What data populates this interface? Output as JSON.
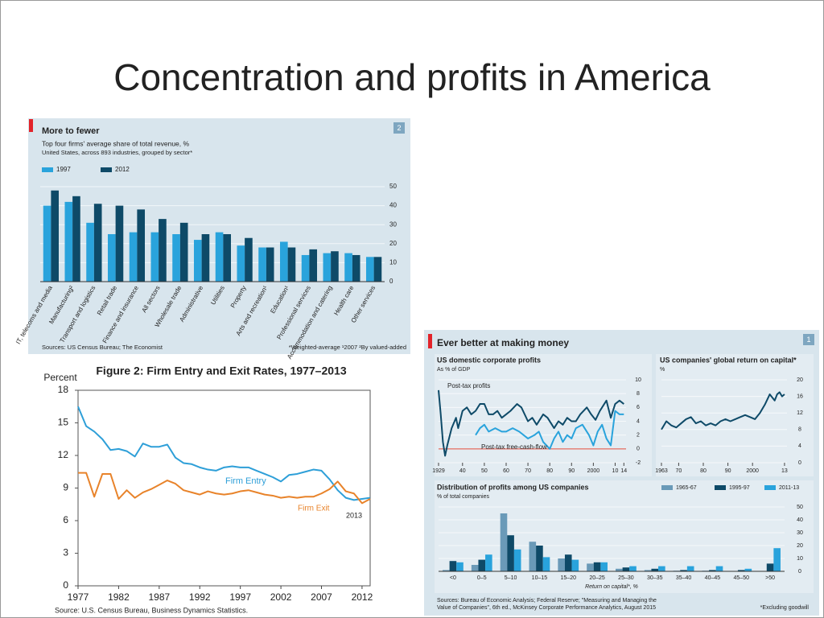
{
  "title": "Concentration and profits in America",
  "chart_data": [
    {
      "type": "bar",
      "title": "More to fewer",
      "subtitle": "Top four firms' average share of total revenue, %",
      "note": "United States, across 893 industries, grouped by sector*",
      "badge": "2",
      "source": "Sources: US Census Bureau; The Economist",
      "footnote": "*Weighted-average ¹2007 ²By valued-added",
      "categories": [
        "IT, telecoms and media",
        "Manufacturing²",
        "Transport and logistics",
        "Retail trade",
        "Finance and insurance",
        "All sectors",
        "Wholesale trade",
        "Administrative",
        "Utilities",
        "Property",
        "Arts and recreation¹",
        "Education¹",
        "Professional services",
        "Accommodation and catering",
        "Health care",
        "Other services"
      ],
      "series": [
        {
          "name": "1997",
          "color": "#29a3dc",
          "values": [
            40,
            42,
            31,
            25,
            26,
            26,
            25,
            22,
            26,
            19,
            18,
            21,
            14,
            15,
            15,
            13
          ]
        },
        {
          "name": "2012",
          "color": "#0e4a68",
          "values": [
            48,
            45,
            41,
            40,
            38,
            33,
            31,
            25,
            25,
            23,
            18,
            18,
            17,
            16,
            14,
            13
          ]
        }
      ],
      "ylim": [
        0,
        50
      ],
      "yticks": [
        0,
        10,
        20,
        30,
        40,
        50
      ],
      "grid": true
    },
    {
      "type": "line",
      "title": "Figure 2: Firm Entry and Exit Rates, 1977–2013",
      "y_label": "Percent",
      "source": "Source: U.S. Census Bureau, Business Dynamics Statistics.",
      "annotation": "2013",
      "x": [
        1977,
        1978,
        1979,
        1980,
        1981,
        1982,
        1983,
        1984,
        1985,
        1986,
        1987,
        1988,
        1989,
        1990,
        1991,
        1992,
        1993,
        1994,
        1995,
        1996,
        1997,
        1998,
        1999,
        2000,
        2001,
        2002,
        2003,
        2004,
        2005,
        2006,
        2007,
        2008,
        2009,
        2010,
        2011,
        2012,
        2013
      ],
      "series": [
        {
          "name": "Firm Entry",
          "color": "#2e9fd8",
          "values": [
            16.5,
            14.7,
            14.2,
            13.5,
            12.5,
            12.6,
            12.4,
            11.9,
            13.1,
            12.8,
            12.8,
            13.0,
            11.8,
            11.3,
            11.2,
            10.9,
            10.7,
            10.6,
            10.9,
            11.0,
            10.9,
            10.9,
            10.6,
            10.3,
            10.0,
            9.6,
            10.2,
            10.3,
            10.5,
            10.7,
            10.6,
            9.8,
            8.8,
            8.1,
            7.9,
            8.0,
            8.1
          ]
        },
        {
          "name": "Firm Exit",
          "color": "#e8832a",
          "values": [
            10.4,
            10.4,
            8.2,
            10.3,
            10.3,
            8.0,
            8.8,
            8.1,
            8.6,
            8.9,
            9.3,
            9.7,
            9.4,
            8.8,
            8.6,
            8.4,
            8.7,
            8.5,
            8.4,
            8.5,
            8.7,
            8.8,
            8.6,
            8.4,
            8.3,
            8.1,
            8.2,
            8.1,
            8.2,
            8.2,
            8.5,
            8.9,
            9.6,
            8.7,
            8.5,
            7.6,
            8.0
          ]
        }
      ],
      "xlim": [
        1977,
        2013
      ],
      "xticks": [
        1977,
        1982,
        1987,
        1992,
        1997,
        2002,
        2007,
        2012
      ],
      "ylim": [
        0,
        18
      ],
      "yticks": [
        0,
        3,
        6,
        9,
        12,
        15,
        18
      ],
      "grid": false
    },
    {
      "type": "line",
      "title": "US domestic corporate profits",
      "subtitle": "As % of GDP",
      "series": [
        {
          "name": "Post-tax profits",
          "color": "#0e4a68",
          "x": [
            1929,
            1930,
            1931,
            1932,
            1933,
            1935,
            1937,
            1938,
            1940,
            1942,
            1944,
            1946,
            1948,
            1950,
            1952,
            1954,
            1956,
            1958,
            1960,
            1962,
            1965,
            1967,
            1970,
            1972,
            1974,
            1977,
            1979,
            1982,
            1984,
            1986,
            1988,
            1990,
            1992,
            1994,
            1997,
            1999,
            2001,
            2003,
            2006,
            2008,
            2010,
            2012,
            2014
          ],
          "values": [
            8.5,
            5,
            1,
            -1,
            0.5,
            3,
            4.5,
            3,
            5.5,
            6,
            5,
            5.5,
            6.5,
            6.5,
            5,
            5,
            5.5,
            4.5,
            5,
            5.5,
            6.5,
            6,
            4,
            4.5,
            3.5,
            5,
            4.5,
            3,
            4,
            3.5,
            4.5,
            4,
            4,
            5,
            6,
            5,
            4.2,
            5.5,
            7,
            4.5,
            6.5,
            7,
            6.5
          ]
        },
        {
          "name": "Post-tax free-cash-flow",
          "color": "#29a3dc",
          "x": [
            1946,
            1948,
            1950,
            1952,
            1955,
            1958,
            1960,
            1963,
            1966,
            1970,
            1973,
            1975,
            1977,
            1980,
            1982,
            1984,
            1986,
            1988,
            1990,
            1992,
            1995,
            1998,
            2000,
            2002,
            2004,
            2006,
            2008,
            2010,
            2012,
            2014
          ],
          "values": [
            2,
            3,
            3.5,
            2.5,
            3,
            2.5,
            2.5,
            3,
            2.5,
            1.5,
            2,
            2.5,
            1,
            0,
            1.5,
            2.5,
            1,
            2,
            1.5,
            3,
            3.5,
            2,
            0.5,
            2.5,
            3.5,
            1.5,
            0.5,
            5.5,
            5,
            5
          ]
        }
      ],
      "xlim": [
        1929,
        2015
      ],
      "xticks": [
        1929,
        {
          "value": 1940,
          "label": "40"
        },
        {
          "value": 1950,
          "label": "50"
        },
        {
          "value": 1960,
          "label": "60"
        },
        {
          "value": 1970,
          "label": "70"
        },
        {
          "value": 1980,
          "label": "80"
        },
        {
          "value": 1990,
          "label": "90"
        },
        2000,
        {
          "value": 2010,
          "label": "10"
        },
        {
          "value": 2014,
          "label": "14"
        }
      ],
      "ylim": [
        -2,
        10
      ],
      "yticks": [
        -2,
        0,
        2,
        4,
        6,
        8,
        10
      ],
      "grid": true,
      "zero_line": true,
      "zero_line_color": "#e2493a"
    },
    {
      "type": "line",
      "title": "US companies' global return on capital*",
      "subtitle": "%",
      "x": [
        1963,
        1965,
        1967,
        1969,
        1971,
        1973,
        1975,
        1977,
        1979,
        1981,
        1983,
        1985,
        1987,
        1989,
        1991,
        1993,
        1995,
        1997,
        1999,
        2001,
        2003,
        2005,
        2007,
        2009,
        2010,
        2011,
        2012,
        2013
      ],
      "series": [
        {
          "color": "#0e4a68",
          "values": [
            8,
            10,
            9,
            8.5,
            9.5,
            10.5,
            11,
            9.5,
            10,
            9,
            9.5,
            9,
            10,
            10.5,
            10,
            10.5,
            11,
            11.5,
            11,
            10.5,
            12,
            14,
            16.5,
            15,
            16.5,
            17,
            16,
            16.5
          ]
        }
      ],
      "xlim": [
        1963,
        2014
      ],
      "xticks": [
        1963,
        {
          "value": 1970,
          "label": "70"
        },
        {
          "value": 1980,
          "label": "80"
        },
        {
          "value": 1990,
          "label": "90"
        },
        2000,
        {
          "value": 2013,
          "label": "13"
        }
      ],
      "ylim": [
        0,
        20
      ],
      "yticks": [
        0,
        4,
        8,
        12,
        16,
        20
      ],
      "grid": true
    },
    {
      "type": "bar",
      "title": "Distribution of profits among US companies",
      "subtitle": "% of total companies",
      "x_label": "Return on capital*, %",
      "categories": [
        "<0",
        "0–5",
        "5–10",
        "10–15",
        "15–20",
        "20–25",
        "25–30",
        "30–35",
        "35–40",
        "40–45",
        "45–50",
        ">50"
      ],
      "series": [
        {
          "name": "1965-67",
          "color": "#6a9ab8",
          "values": [
            1,
            5,
            45,
            23,
            10,
            6,
            2,
            1,
            0.5,
            0.5,
            0,
            0
          ]
        },
        {
          "name": "1995-97",
          "color": "#0e4a68",
          "values": [
            8,
            9,
            28,
            20,
            13,
            7,
            3,
            2,
            1,
            1,
            1,
            6
          ]
        },
        {
          "name": "2011-13",
          "color": "#29a3dc",
          "values": [
            7,
            13,
            17,
            11,
            9,
            7,
            4,
            4,
            4,
            4,
            2,
            18
          ]
        }
      ],
      "ylim": [
        0,
        50
      ],
      "yticks": [
        0,
        10,
        20,
        30,
        40,
        50
      ],
      "grid": true
    }
  ],
  "panel": {
    "title": "Ever better at making money",
    "badge": "1",
    "source": [
      "Sources: Bureau of Economic Analysis; Federal Reserve; \"Measuring and Managing the",
      "Value of Companies\", 6th ed., McKinsey Corporate Performance Analytics, August 2015"
    ],
    "note": "*Excluding goodwill"
  }
}
